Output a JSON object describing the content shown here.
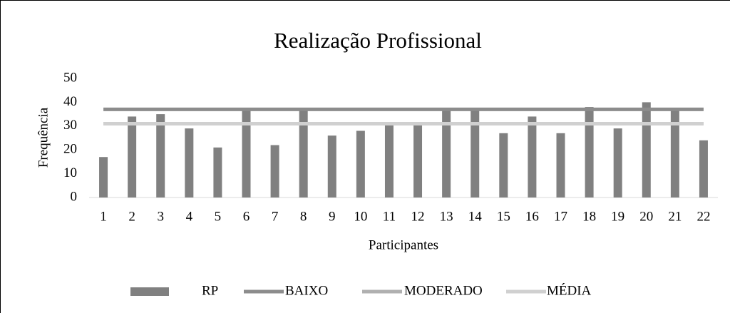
{
  "chart_data": {
    "type": "bar",
    "title": "Realização Profissional",
    "xlabel": "Participantes",
    "ylabel": "Frequência",
    "categories": [
      "1",
      "2",
      "3",
      "4",
      "5",
      "6",
      "7",
      "8",
      "9",
      "10",
      "11",
      "12",
      "13",
      "14",
      "15",
      "16",
      "17",
      "18",
      "19",
      "20",
      "21",
      "22"
    ],
    "series": [
      {
        "name": "RP",
        "type": "bar",
        "color": "#808080",
        "values": [
          17,
          34,
          35,
          29,
          21,
          37,
          22,
          37,
          26,
          28,
          31,
          31,
          37,
          37,
          27,
          34,
          27,
          38,
          29,
          40,
          37,
          24
        ]
      },
      {
        "name": "BAIXO",
        "type": "line",
        "color": "#8c8c8c",
        "values": [
          37,
          37,
          37,
          37,
          37,
          37,
          37,
          37,
          37,
          37,
          37,
          37,
          37,
          37,
          37,
          37,
          37,
          37,
          37,
          37,
          37,
          37
        ]
      },
      {
        "name": "MODERADO",
        "type": "line",
        "color": "#b0b0b0",
        "values": [
          31,
          31,
          31,
          31,
          31,
          31,
          31,
          31,
          31,
          31,
          31,
          31,
          31,
          31,
          31,
          31,
          31,
          31,
          31,
          31,
          31,
          31
        ]
      },
      {
        "name": "MÉDIA",
        "type": "line",
        "color": "#d0d0d0",
        "values": [
          31,
          31,
          31,
          31,
          31,
          31,
          31,
          31,
          31,
          31,
          31,
          31,
          31,
          31,
          31,
          31,
          31,
          31,
          31,
          31,
          31,
          31
        ]
      }
    ],
    "ylim": [
      0,
      50
    ],
    "yticks": [
      0,
      10,
      20,
      30,
      40,
      50
    ],
    "grid": false,
    "legend": "bottom"
  }
}
